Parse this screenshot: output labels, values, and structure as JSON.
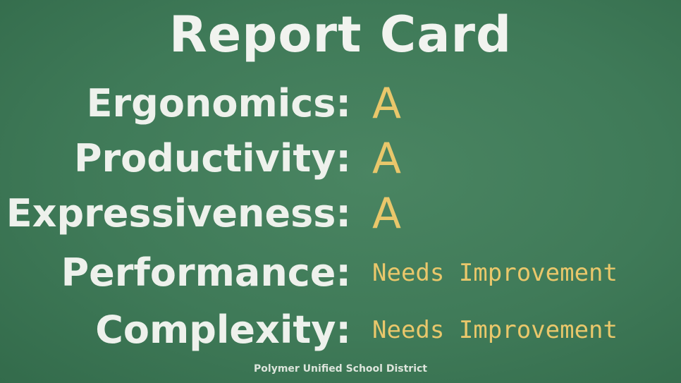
{
  "title": "Report Card",
  "rows": [
    {
      "label": "Ergonomics:",
      "grade": "A"
    },
    {
      "label": "Productivity:",
      "grade": "A"
    },
    {
      "label": "Expressiveness:",
      "grade": "A"
    },
    {
      "label": "Performance:",
      "grade": "Needs Improvement"
    },
    {
      "label": "Complexity:",
      "grade": "Needs Improvement"
    }
  ],
  "footer": "Polymer Unified School District",
  "colors": {
    "background": "#3f7a58",
    "text": "#eef1ec",
    "grade": "#e9c76b"
  }
}
